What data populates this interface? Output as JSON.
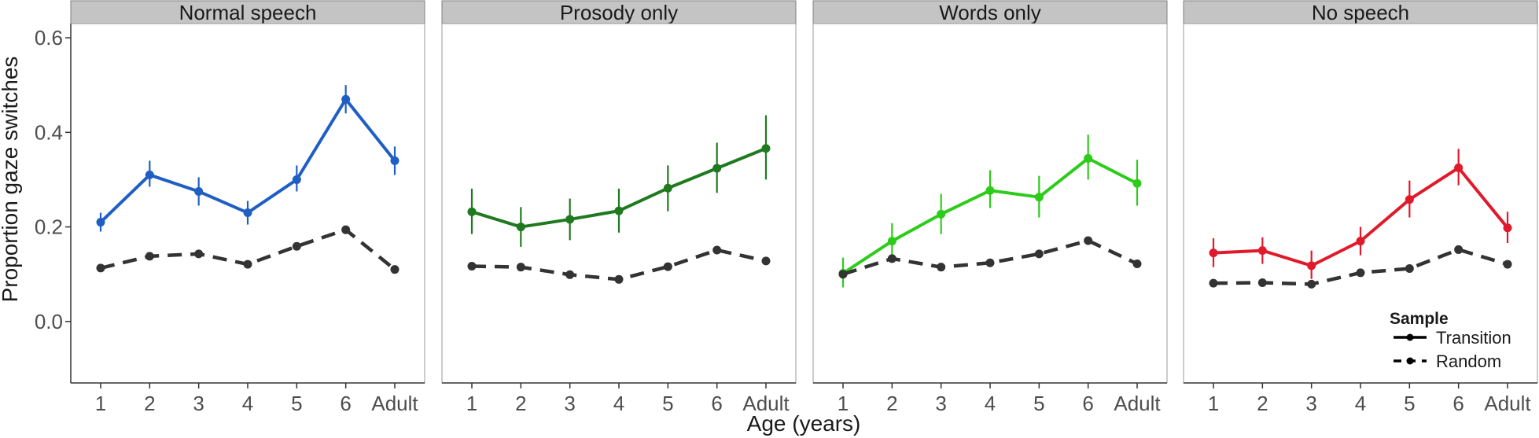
{
  "chart_data": {
    "type": "line",
    "ylabel": "Proportion gaze switches",
    "xlabel": "Age (years)",
    "ylim": [
      -0.13,
      0.63
    ],
    "yticks": [
      0.0,
      0.2,
      0.4,
      0.6
    ],
    "ytick_labels": [
      "0.0",
      "0.2",
      "0.4",
      "0.6"
    ],
    "categories": [
      "1",
      "2",
      "3",
      "4",
      "5",
      "6",
      "Adult"
    ],
    "grid": false,
    "legend": {
      "title": "Sample",
      "placement": "bottom-right",
      "entries": [
        {
          "label": "Transition",
          "linetype": "solid"
        },
        {
          "label": "Random",
          "linetype": "dashed"
        }
      ]
    },
    "panels": [
      {
        "title": "Normal speech",
        "color": "#1f5fc4",
        "series": [
          {
            "name": "Transition",
            "values": [
              0.21,
              0.31,
              0.275,
              0.23,
              0.3,
              0.47,
              0.34
            ],
            "lower": [
              0.19,
              0.285,
              0.245,
              0.205,
              0.275,
              0.44,
              0.31
            ],
            "upper": [
              0.23,
              0.34,
              0.305,
              0.255,
              0.33,
              0.5,
              0.37
            ]
          },
          {
            "name": "Random",
            "values": [
              0.113,
              0.138,
              0.143,
              0.121,
              0.159,
              0.194,
              0.11
            ]
          }
        ]
      },
      {
        "title": "Prosody only",
        "color": "#1f7a1f",
        "series": [
          {
            "name": "Transition",
            "values": [
              0.232,
              0.2,
              0.216,
              0.234,
              0.282,
              0.324,
              0.366
            ],
            "lower": [
              0.185,
              0.158,
              0.172,
              0.188,
              0.233,
              0.272,
              0.3
            ],
            "upper": [
              0.281,
              0.242,
              0.26,
              0.281,
              0.33,
              0.378,
              0.436
            ]
          },
          {
            "name": "Random",
            "values": [
              0.117,
              0.115,
              0.099,
              0.089,
              0.116,
              0.151,
              0.128
            ]
          }
        ]
      },
      {
        "title": "Words only",
        "color": "#2ecc1a",
        "series": [
          {
            "name": "Transition",
            "values": [
              0.102,
              0.17,
              0.227,
              0.277,
              0.263,
              0.345,
              0.292
            ],
            "lower": [
              0.072,
              0.135,
              0.185,
              0.24,
              0.22,
              0.3,
              0.245
            ],
            "upper": [
              0.135,
              0.208,
              0.27,
              0.32,
              0.308,
              0.395,
              0.342
            ]
          },
          {
            "name": "Random",
            "values": [
              0.1,
              0.133,
              0.115,
              0.124,
              0.143,
              0.171,
              0.122
            ]
          }
        ]
      },
      {
        "title": "No speech",
        "color": "#e01a2a",
        "series": [
          {
            "name": "Transition",
            "values": [
              0.145,
              0.15,
              0.118,
              0.17,
              0.258,
              0.325,
              0.198
            ],
            "lower": [
              0.115,
              0.122,
              0.09,
              0.14,
              0.22,
              0.288,
              0.166
            ],
            "upper": [
              0.176,
              0.178,
              0.15,
              0.2,
              0.298,
              0.365,
              0.232
            ]
          },
          {
            "name": "Random",
            "values": [
              0.081,
              0.082,
              0.079,
              0.103,
              0.112,
              0.152,
              0.121
            ]
          }
        ]
      }
    ]
  }
}
